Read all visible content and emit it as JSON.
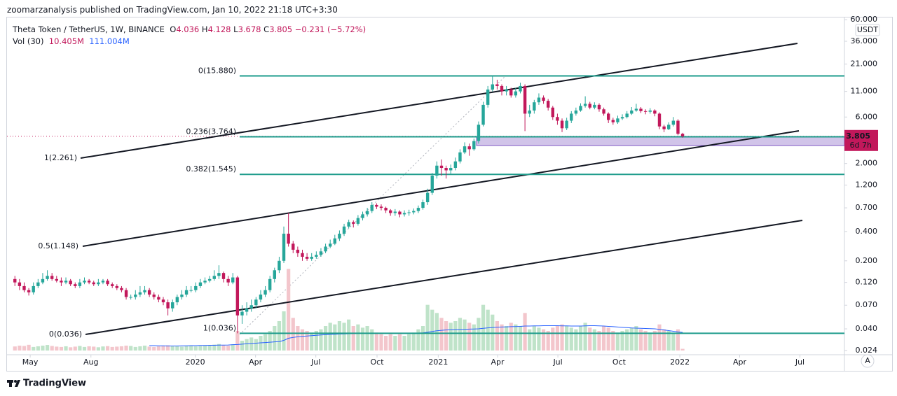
{
  "header": "zoomarzanalysis published on TradingView.com, Jan 10, 2022 21:18 UTC+3:30",
  "footer": "TradingView",
  "chart_data": {
    "type": "candlestick",
    "title": "Theta Token / TetherUS, 1W, BINANCE",
    "ohlc_labels": [
      "O",
      "H",
      "L",
      "C"
    ],
    "change": "−0.231 (−5.72%)",
    "axis_unit": "USDT",
    "countdown": "6d 7h",
    "auto_button": "A",
    "log_scale": true,
    "grid": false,
    "up_color": "#26a69a",
    "down_color": "#c2185b",
    "categories": [
      null,
      null,
      null,
      null,
      null,
      null,
      null,
      null,
      null,
      null,
      null,
      null,
      null,
      null,
      null,
      null,
      null,
      null,
      null,
      null,
      null,
      null,
      null,
      null,
      null,
      null,
      null,
      null,
      null,
      null,
      null,
      null,
      null,
      null,
      null,
      null,
      null,
      null,
      null,
      null,
      null,
      null,
      null,
      null,
      null,
      null,
      null,
      null,
      null,
      null,
      null,
      null,
      null,
      null,
      null,
      null,
      null,
      null,
      null,
      null,
      null,
      null,
      null,
      null,
      null,
      null,
      null,
      null,
      null,
      null,
      null,
      null,
      null,
      null,
      null,
      null,
      null,
      null,
      null,
      null,
      null,
      null,
      null,
      null,
      null,
      null,
      null,
      null,
      null,
      null,
      null,
      null,
      null,
      null,
      null,
      null,
      null,
      null,
      null,
      null,
      null,
      null,
      null,
      null,
      null,
      null,
      null,
      null,
      null,
      null,
      null,
      null,
      null,
      null,
      null,
      null,
      null,
      null,
      null,
      null,
      null,
      null,
      null,
      null,
      null,
      null,
      null,
      null,
      null,
      null,
      null,
      null,
      null,
      null,
      null,
      null,
      null,
      null,
      null,
      null,
      null,
      null,
      null,
      null,
      null
    ],
    "open": [
      0.13,
      0.12,
      0.11,
      0.1,
      0.095,
      0.11,
      0.12,
      0.13,
      0.14,
      0.13,
      0.125,
      0.12,
      0.125,
      0.115,
      0.11,
      0.12,
      0.125,
      0.12,
      0.115,
      0.12,
      0.125,
      0.115,
      0.11,
      0.105,
      0.1,
      0.085,
      0.085,
      0.09,
      0.095,
      0.1,
      0.09,
      0.085,
      0.08,
      0.075,
      0.065,
      0.075,
      0.085,
      0.09,
      0.1,
      0.1,
      0.11,
      0.12,
      0.125,
      0.13,
      0.14,
      0.15,
      0.13,
      0.12,
      0.135,
      0.055,
      0.06,
      0.065,
      0.07,
      0.08,
      0.09,
      0.1,
      0.13,
      0.16,
      0.2,
      0.38,
      0.3,
      0.26,
      0.24,
      0.22,
      0.21,
      0.22,
      0.23,
      0.25,
      0.28,
      0.3,
      0.34,
      0.38,
      0.45,
      0.5,
      0.48,
      0.55,
      0.6,
      0.65,
      0.75,
      0.72,
      0.7,
      0.66,
      0.62,
      0.64,
      0.6,
      0.62,
      0.63,
      0.65,
      0.7,
      0.8,
      1.0,
      1.5,
      1.9,
      1.8,
      1.7,
      1.8,
      2.1,
      2.6,
      3.0,
      2.8,
      3.4,
      5.0,
      8.0,
      11.5,
      13.0,
      12.5,
      11.0,
      11.5,
      10.0,
      11.0,
      12.5,
      6.5,
      7.0,
      8.5,
      9.5,
      8.8,
      7.5,
      6.0,
      5.5,
      4.6,
      5.5,
      6.5,
      7.0,
      7.8,
      8.2,
      7.5,
      8.0,
      7.2,
      6.5,
      5.6,
      5.3,
      5.8,
      6.0,
      6.5,
      7.0,
      7.3,
      6.9,
      6.8,
      7.0,
      6.5,
      4.8,
      4.5,
      5.0,
      5.5,
      4.036
    ],
    "high": [
      0.14,
      0.13,
      0.12,
      0.105,
      0.12,
      0.13,
      0.15,
      0.16,
      0.15,
      0.14,
      0.135,
      0.135,
      0.13,
      0.12,
      0.13,
      0.135,
      0.13,
      0.125,
      0.13,
      0.13,
      0.13,
      0.12,
      0.115,
      0.11,
      0.105,
      0.09,
      0.1,
      0.11,
      0.11,
      0.105,
      0.095,
      0.09,
      0.085,
      0.08,
      0.08,
      0.09,
      0.1,
      0.11,
      0.11,
      0.12,
      0.13,
      0.135,
      0.14,
      0.16,
      0.18,
      0.155,
      0.14,
      0.15,
      0.14,
      0.07,
      0.075,
      0.08,
      0.085,
      0.1,
      0.11,
      0.14,
      0.17,
      0.22,
      0.45,
      0.62,
      0.32,
      0.28,
      0.26,
      0.24,
      0.24,
      0.25,
      0.27,
      0.3,
      0.33,
      0.37,
      0.41,
      0.48,
      0.53,
      0.52,
      0.59,
      0.64,
      0.7,
      0.8,
      0.78,
      0.76,
      0.72,
      0.68,
      0.68,
      0.66,
      0.66,
      0.67,
      0.69,
      0.74,
      0.85,
      1.1,
      1.6,
      2.1,
      2.2,
      1.9,
      1.95,
      2.3,
      2.8,
      3.3,
      3.2,
      3.6,
      5.4,
      8.6,
      12.5,
      15.88,
      14.5,
      13.0,
      12.5,
      12.0,
      12.0,
      13.5,
      13.0,
      8.0,
      9.0,
      10.5,
      10.0,
      9.2,
      7.8,
      6.5,
      5.8,
      5.9,
      6.9,
      7.5,
      8.3,
      9.8,
      8.6,
      8.5,
      8.3,
      7.5,
      6.7,
      5.9,
      6.2,
      6.4,
      6.9,
      7.6,
      8.2,
      7.6,
      7.2,
      7.4,
      7.2,
      6.7,
      5.0,
      5.3,
      6.0,
      5.7,
      4.128
    ],
    "low": [
      0.11,
      0.1,
      0.095,
      0.088,
      0.09,
      0.105,
      0.115,
      0.125,
      0.125,
      0.12,
      0.11,
      0.115,
      0.11,
      0.105,
      0.105,
      0.115,
      0.115,
      0.11,
      0.11,
      0.115,
      0.11,
      0.105,
      0.1,
      0.095,
      0.08,
      0.08,
      0.08,
      0.085,
      0.09,
      0.085,
      0.08,
      0.075,
      0.07,
      0.055,
      0.06,
      0.07,
      0.08,
      0.085,
      0.095,
      0.095,
      0.105,
      0.115,
      0.12,
      0.125,
      0.13,
      0.12,
      0.11,
      0.115,
      0.036,
      0.045,
      0.055,
      0.06,
      0.065,
      0.075,
      0.085,
      0.095,
      0.12,
      0.15,
      0.19,
      0.28,
      0.24,
      0.22,
      0.2,
      0.2,
      0.2,
      0.21,
      0.22,
      0.24,
      0.27,
      0.29,
      0.32,
      0.36,
      0.43,
      0.44,
      0.46,
      0.52,
      0.57,
      0.62,
      0.68,
      0.66,
      0.62,
      0.58,
      0.58,
      0.56,
      0.57,
      0.58,
      0.6,
      0.62,
      0.67,
      0.75,
      0.95,
      1.4,
      1.5,
      1.4,
      1.55,
      1.7,
      2.0,
      2.5,
      2.4,
      2.7,
      3.2,
      4.8,
      7.5,
      11.0,
      11.5,
      10.0,
      10.0,
      9.5,
      9.5,
      10.5,
      4.3,
      6.0,
      6.5,
      8.0,
      8.2,
      7.0,
      5.6,
      5.0,
      4.2,
      4.4,
      5.2,
      6.2,
      6.8,
      7.5,
      7.2,
      7.2,
      6.8,
      6.2,
      5.2,
      5.0,
      5.1,
      5.6,
      5.8,
      6.3,
      6.8,
      6.6,
      6.4,
      6.5,
      6.1,
      4.5,
      4.2,
      4.4,
      4.8,
      3.9,
      3.678
    ],
    "close": [
      0.12,
      0.11,
      0.1,
      0.095,
      0.11,
      0.12,
      0.13,
      0.14,
      0.13,
      0.125,
      0.12,
      0.125,
      0.115,
      0.11,
      0.12,
      0.125,
      0.12,
      0.115,
      0.12,
      0.125,
      0.115,
      0.11,
      0.105,
      0.1,
      0.085,
      0.085,
      0.09,
      0.095,
      0.1,
      0.09,
      0.085,
      0.08,
      0.075,
      0.065,
      0.075,
      0.085,
      0.09,
      0.1,
      0.1,
      0.11,
      0.12,
      0.125,
      0.13,
      0.14,
      0.15,
      0.13,
      0.12,
      0.135,
      0.055,
      0.06,
      0.065,
      0.07,
      0.08,
      0.09,
      0.1,
      0.13,
      0.16,
      0.2,
      0.38,
      0.3,
      0.26,
      0.24,
      0.22,
      0.21,
      0.22,
      0.23,
      0.25,
      0.28,
      0.3,
      0.34,
      0.38,
      0.45,
      0.5,
      0.48,
      0.55,
      0.6,
      0.65,
      0.75,
      0.72,
      0.7,
      0.66,
      0.62,
      0.64,
      0.6,
      0.62,
      0.63,
      0.65,
      0.7,
      0.8,
      1.0,
      1.5,
      1.9,
      1.8,
      1.7,
      1.8,
      2.1,
      2.6,
      3.0,
      2.8,
      3.4,
      5.0,
      8.0,
      11.5,
      13.0,
      12.5,
      11.0,
      11.5,
      10.0,
      11.0,
      12.5,
      6.5,
      7.0,
      8.5,
      9.5,
      8.8,
      7.5,
      6.0,
      5.5,
      4.6,
      5.5,
      6.5,
      7.0,
      7.8,
      8.2,
      7.5,
      8.0,
      7.2,
      6.5,
      5.6,
      5.3,
      5.8,
      6.0,
      6.5,
      7.0,
      7.3,
      6.9,
      6.8,
      7.0,
      6.5,
      4.8,
      4.5,
      5.0,
      5.5,
      4.036,
      3.805
    ],
    "volume": {
      "name": "Vol (30)",
      "up_color": "#bfe3c9",
      "down_color": "#f3c6cc",
      "value_label": "10.405M",
      "values": [
        25,
        30,
        28,
        35,
        22,
        26,
        30,
        34,
        28,
        24,
        22,
        26,
        20,
        24,
        28,
        22,
        26,
        24,
        20,
        25,
        27,
        22,
        24,
        26,
        30,
        28,
        22,
        26,
        30,
        24,
        22,
        26,
        28,
        32,
        30,
        26,
        24,
        28,
        30,
        26,
        28,
        30,
        32,
        36,
        40,
        34,
        30,
        38,
        120,
        60,
        70,
        80,
        70,
        90,
        100,
        120,
        150,
        180,
        240,
        500,
        200,
        150,
        130,
        120,
        110,
        120,
        130,
        150,
        170,
        160,
        180,
        170,
        190,
        150,
        160,
        140,
        150,
        130,
        110,
        100,
        90,
        100,
        90,
        100,
        90,
        100,
        110,
        130,
        150,
        280,
        250,
        230,
        200,
        180,
        170,
        180,
        200,
        190,
        170,
        160,
        200,
        280,
        250,
        220,
        180,
        160,
        150,
        170,
        160,
        150,
        230,
        130,
        150,
        140,
        130,
        120,
        140,
        150,
        160,
        150,
        140,
        130,
        150,
        170,
        140,
        130,
        120,
        150,
        140,
        120,
        110,
        120,
        130,
        140,
        150,
        130,
        120,
        110,
        120,
        160,
        130,
        120,
        110,
        130,
        10.405
      ]
    },
    "volume_ma": {
      "color": "#2962ff",
      "value_label": "111.004M",
      "values": [
        null,
        null,
        null,
        null,
        null,
        null,
        null,
        null,
        null,
        null,
        null,
        null,
        null,
        null,
        null,
        null,
        null,
        null,
        null,
        null,
        null,
        null,
        null,
        null,
        null,
        null,
        null,
        null,
        null,
        30,
        30,
        29,
        29,
        28,
        28,
        28,
        29,
        29,
        30,
        30,
        31,
        31,
        32,
        32,
        33,
        33,
        34,
        36,
        37,
        39,
        41,
        43,
        45,
        47,
        49,
        51,
        53,
        55,
        62,
        75,
        80,
        84,
        87,
        89,
        91,
        93,
        95,
        97,
        99,
        100,
        101,
        102,
        103,
        104,
        105,
        106,
        107,
        107,
        107,
        107,
        106,
        106,
        106,
        106,
        106,
        106,
        107,
        107,
        108,
        112,
        117,
        121,
        124,
        126,
        127,
        128,
        129,
        130,
        131,
        132,
        133,
        136,
        139,
        141,
        143,
        144,
        145,
        146,
        147,
        148,
        150,
        150,
        151,
        151,
        152,
        152,
        152,
        152,
        151,
        151,
        150,
        150,
        150,
        151,
        152,
        152,
        151,
        150,
        148,
        146,
        144,
        142,
        140,
        138,
        137,
        136,
        135,
        134,
        133,
        130,
        126,
        122,
        118,
        114,
        111.004
      ]
    },
    "fib_color": "#1e9c8c",
    "fib_levels": [
      {
        "label": "0(15.880)",
        "value": 15.88
      },
      {
        "label": "0.236(3.764)",
        "value": 3.764
      },
      {
        "label": "0.382(1.545)",
        "value": 1.545
      },
      {
        "label": "1(0.036)",
        "value": 0.036
      }
    ],
    "channel_labels": [
      "1(2.261)",
      "0.5(1.148)",
      "0(0.036)"
    ],
    "xlim": [
      -1.7,
      178.9
    ],
    "xticks": [
      {
        "value": 3.3,
        "label": "May"
      },
      {
        "value": 16.4,
        "label": "Aug"
      },
      {
        "value": 38.9,
        "label": "2020"
      },
      {
        "value": 51.9,
        "label": "Apr"
      },
      {
        "value": 64.9,
        "label": "Jul"
      },
      {
        "value": 78.1,
        "label": "Oct"
      },
      {
        "value": 91.3,
        "label": "2021"
      },
      {
        "value": 104.1,
        "label": "Apr"
      },
      {
        "value": 117.1,
        "label": "Jul"
      },
      {
        "value": 130.3,
        "label": "Oct"
      },
      {
        "value": 143.4,
        "label": "2022"
      },
      {
        "value": 156.3,
        "label": "Apr"
      },
      {
        "value": 169.3,
        "label": "Jul"
      }
    ],
    "ylim": [
      0.0217,
      66.4
    ],
    "yticks": [
      {
        "value": 60,
        "label": "60.000"
      },
      {
        "value": 36,
        "label": "36.000"
      },
      {
        "value": 21,
        "label": "21.000"
      },
      {
        "value": 11,
        "label": "11.000"
      },
      {
        "value": 6,
        "label": "6.000"
      },
      {
        "value": 2,
        "label": "2.000"
      },
      {
        "value": 1.2,
        "label": "1.200"
      },
      {
        "value": 0.7,
        "label": "0.700"
      },
      {
        "value": 0.4,
        "label": "0.400"
      },
      {
        "value": 0.2,
        "label": "0.200"
      },
      {
        "value": 0.12,
        "label": "0.120"
      },
      {
        "value": 0.07,
        "label": "0.070"
      },
      {
        "value": 0.04,
        "label": "0.040"
      },
      {
        "value": 0.024,
        "label": "0.024"
      }
    ]
  }
}
